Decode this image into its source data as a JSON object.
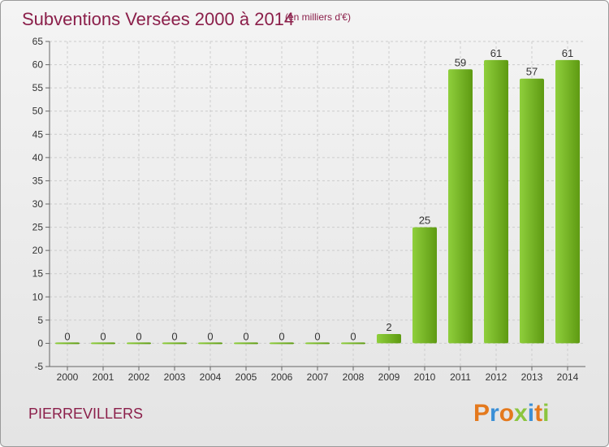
{
  "colors": {
    "bar_light": "#8fcf3c",
    "bar_dark": "#5e9a12",
    "title": "#8b1f4a",
    "grid": "#cccccc",
    "text": "#333333"
  },
  "header": {
    "title": "Subventions Versées 2000 à 2014",
    "unit": "(en milliers d'€)"
  },
  "footer": {
    "commune": "PIERREVILLERS",
    "logo_letters": [
      {
        "ch": "P",
        "color": "#e4791d"
      },
      {
        "ch": "r",
        "color": "#3a8fd6"
      },
      {
        "ch": "o",
        "color": "#e4791d"
      },
      {
        "ch": "x",
        "color": "#8bc53f"
      },
      {
        "ch": "i",
        "color": "#3a8fd6"
      },
      {
        "ch": "t",
        "color": "#e4791d"
      },
      {
        "ch": "i",
        "color": "#8bc53f"
      }
    ]
  },
  "chart_data": {
    "type": "bar",
    "title": "Subventions Versées 2000 à 2014",
    "subtitle": "(en milliers d'€)",
    "categories": [
      "2000",
      "2001",
      "2002",
      "2003",
      "2004",
      "2005",
      "2006",
      "2007",
      "2008",
      "2009",
      "2010",
      "2011",
      "2012",
      "2013",
      "2014"
    ],
    "values": [
      0,
      0,
      0,
      0,
      0,
      0,
      0,
      0,
      0,
      2,
      25,
      59,
      61,
      57,
      61
    ],
    "ylim": [
      -5,
      65
    ],
    "yticks": [
      -5,
      0,
      5,
      10,
      15,
      20,
      25,
      30,
      35,
      40,
      45,
      50,
      55,
      60,
      65
    ],
    "grid": true,
    "legend": "none"
  }
}
